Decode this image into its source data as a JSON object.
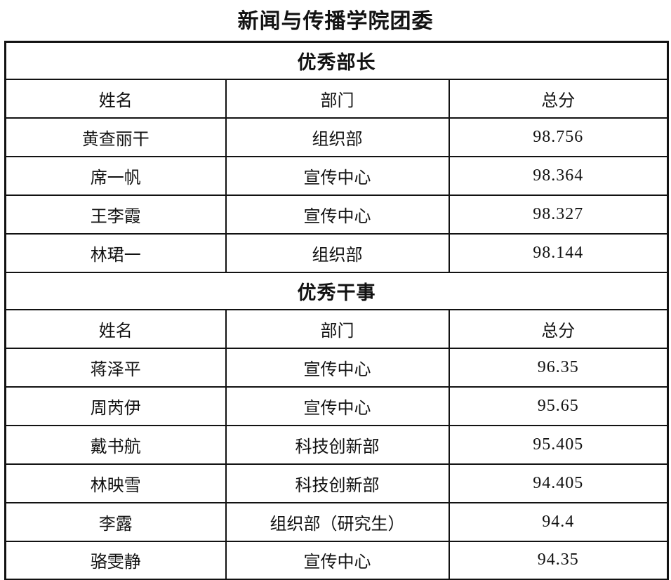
{
  "page": {
    "title": "新闻与传播学院团委"
  },
  "colors": {
    "background": "#ffffff",
    "border": "#121212",
    "text": "#121212"
  },
  "table": {
    "column_keys": [
      "name",
      "department",
      "score"
    ],
    "sections": [
      {
        "header": "优秀部长",
        "columns": [
          "姓名",
          "部门",
          "总分"
        ],
        "rows": [
          [
            "黄查丽干",
            "组织部",
            "98.756"
          ],
          [
            "席一帆",
            "宣传中心",
            "98.364"
          ],
          [
            "王李霞",
            "宣传中心",
            "98.327"
          ],
          [
            "林珺一",
            "组织部",
            "98.144"
          ]
        ]
      },
      {
        "header": "优秀干事",
        "columns": [
          "姓名",
          "部门",
          "总分"
        ],
        "rows": [
          [
            "蒋泽平",
            "宣传中心",
            "96.35"
          ],
          [
            "周芮伊",
            "宣传中心",
            "95.65"
          ],
          [
            "戴书航",
            "科技创新部",
            "95.405"
          ],
          [
            "林映雪",
            "科技创新部",
            "94.405"
          ],
          [
            "李露",
            "组织部（研究生）",
            "94.4"
          ],
          [
            "骆雯静",
            "宣传中心",
            "94.35"
          ]
        ]
      }
    ]
  }
}
